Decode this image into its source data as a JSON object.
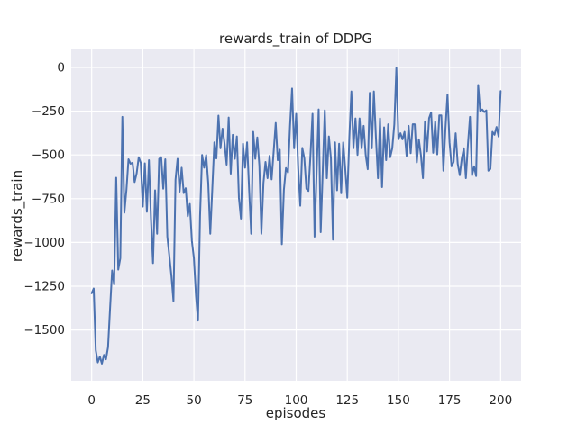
{
  "title": "rewards_train of DDPG",
  "chart_data": {
    "type": "line",
    "title": "rewards_train of DDPG",
    "xlabel": "episodes",
    "ylabel": "rewards_train",
    "x_ticks": [
      0,
      25,
      50,
      75,
      100,
      125,
      150,
      175,
      200
    ],
    "y_ticks": [
      0,
      -250,
      -500,
      -750,
      -1000,
      -1250,
      -1500
    ],
    "xlim": [
      -10,
      210
    ],
    "ylim": [
      -1790,
      108
    ],
    "grid": true,
    "legend_position": "none",
    "series": [
      {
        "name": "rewards_train",
        "x_start": 0,
        "x_step": 1,
        "values": [
          -1290,
          -1263,
          -1615,
          -1685,
          -1652,
          -1692,
          -1642,
          -1667,
          -1598,
          -1375,
          -1160,
          -1240,
          -630,
          -1155,
          -1090,
          -282,
          -830,
          -700,
          -525,
          -550,
          -545,
          -655,
          -605,
          -513,
          -545,
          -795,
          -548,
          -825,
          -530,
          -864,
          -1118,
          -702,
          -950,
          -522,
          -513,
          -693,
          -525,
          -967,
          -1078,
          -1190,
          -1335,
          -642,
          -522,
          -710,
          -573,
          -718,
          -690,
          -850,
          -780,
          -990,
          -1090,
          -1300,
          -1446,
          -850,
          -500,
          -573,
          -501,
          -660,
          -950,
          -690,
          -428,
          -520,
          -275,
          -462,
          -350,
          -436,
          -556,
          -286,
          -607,
          -385,
          -522,
          -394,
          -745,
          -864,
          -436,
          -573,
          -428,
          -700,
          -950,
          -368,
          -522,
          -400,
          -560,
          -950,
          -660,
          -540,
          -633,
          -505,
          -640,
          -480,
          -317,
          -530,
          -470,
          -1010,
          -700,
          -575,
          -600,
          -335,
          -120,
          -462,
          -265,
          -575,
          -790,
          -460,
          -520,
          -693,
          -706,
          -500,
          -265,
          -967,
          -600,
          -240,
          -941,
          -590,
          -245,
          -633,
          -394,
          -520,
          -984,
          -428,
          -702,
          -436,
          -719,
          -428,
          -580,
          -744,
          -400,
          -137,
          -462,
          -291,
          -500,
          -291,
          -462,
          -334,
          -500,
          -582,
          -145,
          -462,
          -137,
          -400,
          -633,
          -291,
          -684,
          -342,
          -530,
          -325,
          -513,
          -462,
          -325,
          -2,
          -411,
          -376,
          -411,
          -368,
          -505,
          -334,
          -490,
          -325,
          -325,
          -543,
          -411,
          -500,
          -633,
          -308,
          -480,
          -290,
          -257,
          -488,
          -308,
          -497,
          -274,
          -274,
          -590,
          -350,
          -154,
          -428,
          -565,
          -540,
          -376,
          -550,
          -616,
          -520,
          -462,
          -633,
          -440,
          -282,
          -616,
          -565,
          -621,
          -100,
          -250,
          -240,
          -255,
          -245,
          -590,
          -580,
          -368,
          -385,
          -340,
          -395,
          -135
        ]
      }
    ],
    "colors": {
      "figure_background": "#ffffff",
      "axes_background": "#eaeaf2",
      "grid": "#ffffff",
      "line": "#4c72b0",
      "text": "#262626"
    }
  }
}
